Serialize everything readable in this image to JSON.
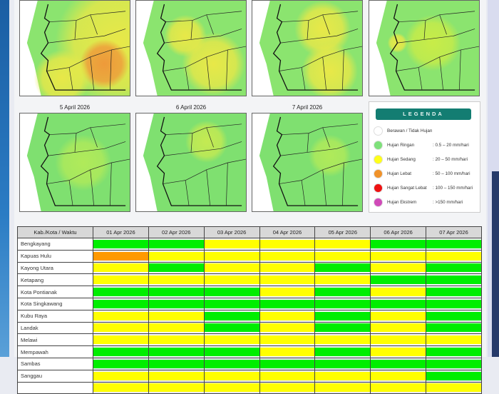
{
  "maps": [
    {
      "label": ""
    },
    {
      "label": ""
    },
    {
      "label": ""
    },
    {
      "label": ""
    },
    {
      "label": "5 April 2026"
    },
    {
      "label": "6 April 2026"
    },
    {
      "label": "7 April 2026"
    }
  ],
  "legend": {
    "title": "LEGENDA",
    "items": [
      {
        "name": "Berawan / Tidak Hujan",
        "range": "",
        "color": "#ffffff"
      },
      {
        "name": "Hujan Ringan",
        "range": ": 0.5 – 20 mm/hari",
        "color": "#7ee07a"
      },
      {
        "name": "Hujan Sedang",
        "range": ": 20 – 50 mm/hari",
        "color": "#ffff1a"
      },
      {
        "name": "Hujan Lebat",
        "range": ": 50 – 100 mm/hari",
        "color": "#f0922a"
      },
      {
        "name": "Hujan Sangat Lebat",
        "range": ": 100 – 150 mm/hari",
        "color": "#ee1111"
      },
      {
        "name": "Hujan Ekstrem",
        "range": ": >150 mm/hari",
        "color": "#d04ab8"
      }
    ]
  },
  "table": {
    "header": "Kab./Kota / Waktu",
    "dates": [
      "01 Apr 2026",
      "02 Apr 2026",
      "03 Apr 2026",
      "04 Apr 2026",
      "05 Apr 2026",
      "06 Apr 2026",
      "07 Apr 2026"
    ],
    "colors": {
      "G": "#00ee00",
      "Y": "#ffff00",
      "O": "#ff9900"
    },
    "rows": [
      {
        "name": "Bengkayang",
        "cats": [
          "G",
          "G",
          "Y",
          "Y",
          "Y",
          "G",
          "G"
        ]
      },
      {
        "name": "Kapuas Hulu",
        "cats": [
          "O",
          "Y",
          "Y",
          "Y",
          "Y",
          "Y",
          "Y"
        ]
      },
      {
        "name": "Kayong Utara",
        "cats": [
          "Y",
          "G",
          "Y",
          "Y",
          "G",
          "Y",
          "G"
        ]
      },
      {
        "name": "Ketapang",
        "cats": [
          "Y",
          "Y",
          "Y",
          "Y",
          "Y",
          "G",
          "G"
        ]
      },
      {
        "name": "Kota Pontianak",
        "cats": [
          "G",
          "G",
          "G",
          "Y",
          "G",
          "Y",
          "G"
        ]
      },
      {
        "name": "Kota Singkawang",
        "cats": [
          "G",
          "G",
          "G",
          "G",
          "G",
          "G",
          "G"
        ]
      },
      {
        "name": "Kubu Raya",
        "cats": [
          "Y",
          "Y",
          "G",
          "Y",
          "G",
          "Y",
          "G"
        ]
      },
      {
        "name": "Landak",
        "cats": [
          "Y",
          "Y",
          "G",
          "Y",
          "G",
          "Y",
          "G"
        ]
      },
      {
        "name": "Melawi",
        "cats": [
          "Y",
          "Y",
          "Y",
          "Y",
          "Y",
          "Y",
          "Y"
        ]
      },
      {
        "name": "Mempawah",
        "cats": [
          "G",
          "G",
          "G",
          "Y",
          "G",
          "Y",
          "G"
        ]
      },
      {
        "name": "Sambas",
        "cats": [
          "G",
          "G",
          "G",
          "G",
          "G",
          "G",
          "G"
        ]
      },
      {
        "name": "Sanggau",
        "cats": [
          "Y",
          "Y",
          "Y",
          "Y",
          "Y",
          "Y",
          "G"
        ]
      },
      {
        "name": "",
        "cats": [
          "Y",
          "Y",
          "Y",
          "Y",
          "Y",
          "Y",
          "Y"
        ]
      }
    ]
  }
}
